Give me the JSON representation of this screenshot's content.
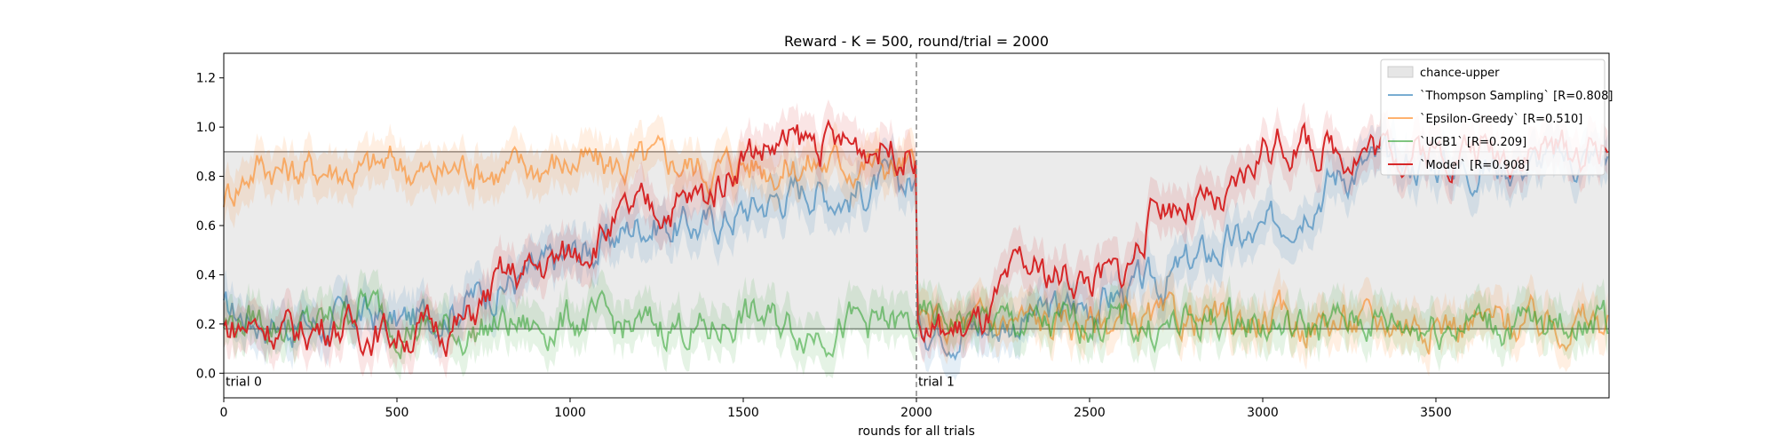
{
  "chart_data": {
    "type": "line",
    "title": "Reward - K = 500, round/trial = 2000",
    "xlabel": "rounds for all trials",
    "ylabel": "",
    "xlim": [
      0,
      4000
    ],
    "ylim": [
      -0.1,
      1.3
    ],
    "x_ticks": [
      0,
      500,
      1000,
      1500,
      2000,
      2500,
      3000,
      3500
    ],
    "y_ticks": [
      0.0,
      0.2,
      0.4,
      0.6,
      0.8,
      1.0,
      1.2
    ],
    "x_tick_labels": [
      "0",
      "500",
      "1000",
      "1500",
      "2000",
      "2500",
      "3000",
      "3500"
    ],
    "y_tick_labels": [
      "0.0",
      "0.2",
      "0.4",
      "0.6",
      "0.8",
      "1.0",
      "1.2"
    ],
    "legend_position": "top-right",
    "grid": false,
    "chance_band": {
      "name": "chance-upper",
      "lower": 0.18,
      "upper": 0.9,
      "color": "#e6e6e6"
    },
    "reference_lines": [
      0.0,
      0.18,
      0.9
    ],
    "trial_divider_x": 2000,
    "annotations": [
      {
        "text": "trial 0",
        "x": 0,
        "y": 0.0
      },
      {
        "text": "trial 1",
        "x": 2000,
        "y": 0.0
      }
    ],
    "x": [
      0,
      100,
      200,
      300,
      400,
      500,
      600,
      700,
      800,
      900,
      1000,
      1100,
      1200,
      1300,
      1400,
      1500,
      1600,
      1700,
      1800,
      1900,
      1999,
      2000,
      2100,
      2200,
      2300,
      2400,
      2500,
      2600,
      2700,
      2800,
      2900,
      3000,
      3100,
      3200,
      3300,
      3400,
      3500,
      3600,
      3700,
      3800,
      3900,
      3999
    ],
    "series": [
      {
        "name": "`Thompson Sampling` [R=0.808]",
        "color": "#1f77b4",
        "values": [
          0.25,
          0.22,
          0.2,
          0.2,
          0.24,
          0.2,
          0.24,
          0.3,
          0.36,
          0.4,
          0.48,
          0.52,
          0.62,
          0.6,
          0.6,
          0.66,
          0.72,
          0.76,
          0.72,
          0.76,
          0.78,
          0.2,
          0.2,
          0.18,
          0.22,
          0.25,
          0.28,
          0.33,
          0.36,
          0.45,
          0.52,
          0.55,
          0.68,
          0.8,
          0.85,
          0.85,
          0.86,
          0.84,
          0.85,
          0.86,
          0.87,
          0.88
        ]
      },
      {
        "name": "`Epsilon-Greedy` [R=0.510]",
        "color": "#ff7f0e",
        "values": [
          0.72,
          0.86,
          0.82,
          0.84,
          0.82,
          0.86,
          0.8,
          0.85,
          0.82,
          0.84,
          0.86,
          0.84,
          0.85,
          0.86,
          0.83,
          0.86,
          0.84,
          0.85,
          0.86,
          0.85,
          0.82,
          0.2,
          0.18,
          0.2,
          0.22,
          0.2,
          0.21,
          0.22,
          0.2,
          0.22,
          0.2,
          0.22,
          0.2,
          0.21,
          0.2,
          0.22,
          0.21,
          0.2,
          0.21,
          0.2,
          0.21,
          0.2
        ]
      },
      {
        "name": "`UCB1` [R=0.209]",
        "color": "#2ca02c",
        "values": [
          0.2,
          0.22,
          0.18,
          0.2,
          0.3,
          0.2,
          0.18,
          0.16,
          0.2,
          0.18,
          0.22,
          0.2,
          0.18,
          0.2,
          0.16,
          0.24,
          0.2,
          0.18,
          0.2,
          0.2,
          0.18,
          0.2,
          0.22,
          0.2,
          0.2,
          0.18,
          0.22,
          0.2,
          0.18,
          0.2,
          0.22,
          0.2,
          0.18,
          0.2,
          0.22,
          0.2,
          0.2,
          0.22,
          0.2,
          0.18,
          0.22,
          0.2
        ]
      },
      {
        "name": "`Model` [R=0.908]",
        "color": "#d62728",
        "values": [
          0.18,
          0.2,
          0.16,
          0.2,
          0.18,
          0.16,
          0.18,
          0.2,
          0.38,
          0.42,
          0.48,
          0.58,
          0.66,
          0.68,
          0.72,
          0.9,
          0.92,
          0.94,
          0.92,
          0.93,
          0.9,
          0.18,
          0.16,
          0.2,
          0.42,
          0.4,
          0.38,
          0.4,
          0.7,
          0.68,
          0.66,
          0.92,
          0.94,
          0.9,
          0.92,
          0.91,
          0.9,
          0.92,
          0.9,
          0.91,
          0.9,
          0.92
        ]
      }
    ]
  }
}
